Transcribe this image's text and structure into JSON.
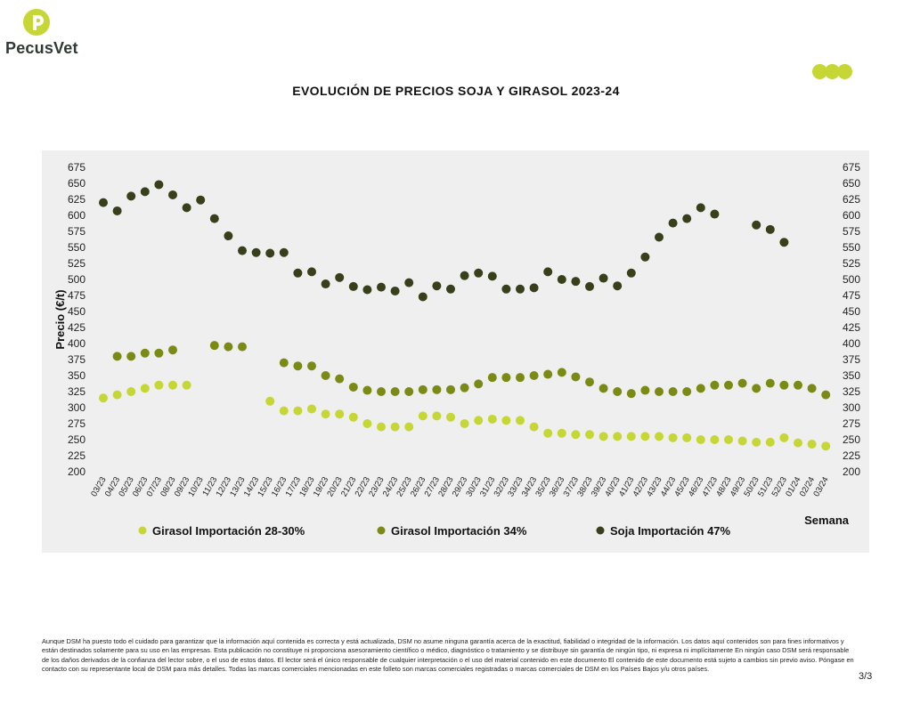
{
  "header": {
    "brand": "PecusVet",
    "brand_color": "#c5d635",
    "title": "EVOLUCIÓN DE PRECIOS SOJA Y GIRASOL 2023-24"
  },
  "chart_data": {
    "type": "scatter",
    "title": "EVOLUCIÓN DE PRECIOS SOJA Y GIRASOL 2023-24",
    "xlabel": "Semana",
    "ylabel": "Precio (€/t)",
    "ylim": [
      200,
      675
    ],
    "yticks": [
      200,
      225,
      250,
      275,
      300,
      325,
      350,
      375,
      400,
      425,
      450,
      475,
      500,
      525,
      550,
      575,
      600,
      625,
      650,
      675
    ],
    "grid": false,
    "legend_position": "bottom",
    "categories": [
      "03/23",
      "04/23",
      "05/23",
      "06/23",
      "07/23",
      "08/23",
      "09/23",
      "10/23",
      "11/23",
      "12/23",
      "13/23",
      "14/23",
      "15/23",
      "16/23",
      "17/23",
      "18/23",
      "19/23",
      "20/23",
      "21/23",
      "22/23",
      "23/23",
      "24/23",
      "25/23",
      "26/23",
      "27/23",
      "28/23",
      "29/23",
      "30/23",
      "31/23",
      "32/23",
      "33/23",
      "34/23",
      "35/23",
      "36/23",
      "37/23",
      "38/23",
      "39/23",
      "40/23",
      "41/23",
      "42/23",
      "43/23",
      "44/23",
      "45/23",
      "46/23",
      "47/23",
      "48/23",
      "49/23",
      "50/23",
      "51/23",
      "52/23",
      "01/24",
      "02/24",
      "03/24"
    ],
    "series": [
      {
        "name": "Girasol Importación 28-30%",
        "color": "#c5d635",
        "values": [
          315,
          320,
          325,
          330,
          335,
          335,
          335,
          null,
          null,
          null,
          null,
          null,
          310,
          295,
          295,
          298,
          290,
          290,
          285,
          275,
          270,
          270,
          270,
          287,
          287,
          285,
          275,
          280,
          282,
          280,
          280,
          270,
          260,
          260,
          258,
          258,
          255,
          255,
          255,
          255,
          255,
          253,
          253,
          250,
          250,
          250,
          248,
          246,
          246,
          253,
          245,
          243,
          240
        ]
      },
      {
        "name": "Girasol Importación 34%",
        "color": "#7a8a14",
        "values": [
          null,
          380,
          380,
          385,
          385,
          390,
          null,
          null,
          397,
          395,
          395,
          null,
          null,
          370,
          365,
          365,
          350,
          345,
          332,
          327,
          325,
          325,
          325,
          328,
          328,
          328,
          331,
          337,
          347,
          347,
          347,
          350,
          352,
          355,
          348,
          340,
          330,
          325,
          322,
          327,
          325,
          325,
          325,
          330,
          335,
          335,
          338,
          330,
          338,
          335,
          335,
          330,
          320
        ]
      },
      {
        "name": "Soja Importación 47%",
        "color": "#37401a",
        "values": [
          620,
          607,
          630,
          637,
          648,
          632,
          612,
          624,
          595,
          568,
          545,
          542,
          541,
          542,
          510,
          512,
          493,
          503,
          489,
          484,
          488,
          482,
          495,
          473,
          490,
          485,
          506,
          510,
          505,
          485,
          485,
          487,
          512,
          500,
          497,
          489,
          502,
          490,
          510,
          535,
          566,
          588,
          595,
          612,
          602,
          null,
          null,
          585,
          578,
          558,
          null,
          null,
          null
        ]
      }
    ]
  },
  "footer": {
    "disclaimer": "Aunque DSM ha puesto todo el cuidado para garantizar que la información aquí contenida es correcta y está actualizada, DSM no asume ninguna garantía acerca de la exactitud, fiabilidad o integridad de la información. Los datos aquí contenidos son para fines informativos y están destinados solamente para su uso en las empresas. Esta publicación no constituye ni proporciona asesoramiento científico o médico, diagnóstico o tratamiento y se distribuye sin garantía de ningún tipo, ni expresa ni implícitamente En ningún caso DSM será responsable de los daños derivados de la confianza del lector sobre, o el uso de estos datos. El lector será el único responsable de cualquier interpretación o el uso del material contenido en este documento El contenido de este documento está sujeto a cambios sin previo aviso. Póngase en contacto con su representante local de DSM para más detalles. Todas las marcas comerciales mencionadas en este folleto son marcas comerciales registradas o marcas comerciales de DSM en los Países Bajos y/u otros países.",
    "page_number": "3/3"
  }
}
